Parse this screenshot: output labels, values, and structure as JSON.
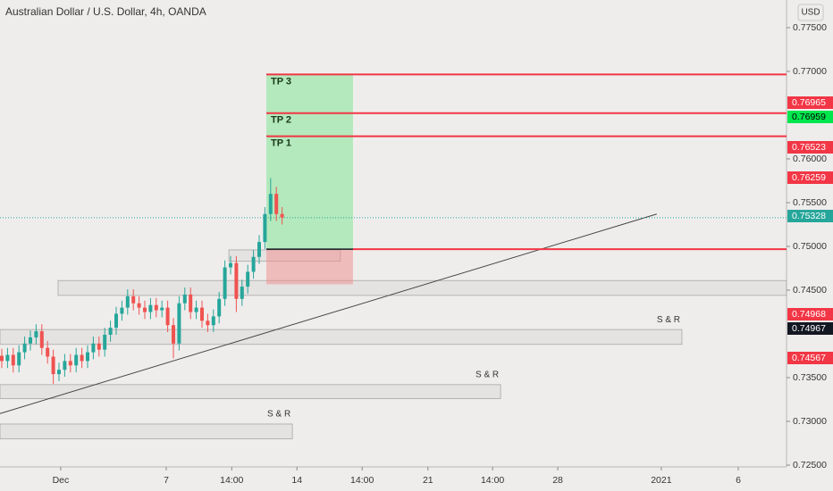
{
  "chart_data": {
    "type": "candlestick",
    "title": "Australian Dollar / U.S. Dollar, 4h, OANDA",
    "currency": "USD",
    "xlim": [
      -0.3125,
      137.19
    ],
    "ylim": [
      0.7248,
      0.77816
    ],
    "xticks": [
      {
        "value": 10.3,
        "label": "Dec"
      },
      {
        "value": 28.75,
        "label": "7"
      },
      {
        "value": 40.2,
        "label": "14:00"
      },
      {
        "value": 51.6,
        "label": "14"
      },
      {
        "value": 63.0,
        "label": "14:00"
      },
      {
        "value": 74.5,
        "label": "21"
      },
      {
        "value": 85.8,
        "label": "14:00"
      },
      {
        "value": 97.2,
        "label": "28"
      },
      {
        "value": 115.3,
        "label": "2021"
      },
      {
        "value": 128.75,
        "label": "6"
      }
    ],
    "yticks": [
      {
        "value": 0.775,
        "label": "0.77500"
      },
      {
        "value": 0.77,
        "label": "0.77000"
      },
      {
        "value": 0.76,
        "label": "0.76000"
      },
      {
        "value": 0.755,
        "label": "0.75500"
      },
      {
        "value": 0.75,
        "label": "0.75000"
      },
      {
        "value": 0.745,
        "label": "0.74500"
      },
      {
        "value": 0.735,
        "label": "0.73500"
      },
      {
        "value": 0.73,
        "label": "0.73000"
      },
      {
        "value": 0.725,
        "label": "0.72500"
      }
    ],
    "up_color": "#26a69a",
    "down_color": "#ef5350",
    "open": [
      0.7375,
      0.7369,
      0.7376,
      0.7364,
      0.7379,
      0.7389,
      0.7396,
      0.7403,
      0.7384,
      0.7374,
      0.7354,
      0.7359,
      0.7369,
      0.7364,
      0.7376,
      0.7369,
      0.7379,
      0.7389,
      0.7382,
      0.7399,
      0.7407,
      0.7423,
      0.743,
      0.7443,
      0.7435,
      0.743,
      0.7425,
      0.7433,
      0.7427,
      0.743,
      0.741,
      0.7389,
      0.7435,
      0.7445,
      0.7425,
      0.743,
      0.7415,
      0.741,
      0.742,
      0.744,
      0.7476,
      0.7481,
      0.744,
      0.7454,
      0.7471,
      0.7488,
      0.7505,
      0.7537,
      0.756,
      0.7537
    ],
    "high": [
      0.7383,
      0.7384,
      0.7384,
      0.7387,
      0.7397,
      0.7404,
      0.7411,
      0.7411,
      0.7392,
      0.7382,
      0.7367,
      0.7377,
      0.7377,
      0.7384,
      0.7384,
      0.7387,
      0.7397,
      0.7397,
      0.7407,
      0.7415,
      0.7431,
      0.7438,
      0.7451,
      0.7451,
      0.7443,
      0.7438,
      0.7441,
      0.7441,
      0.7438,
      0.7438,
      0.7418,
      0.7443,
      0.7453,
      0.7453,
      0.7438,
      0.7438,
      0.7423,
      0.7428,
      0.7448,
      0.7484,
      0.7489,
      0.7489,
      0.7462,
      0.7479,
      0.7496,
      0.7513,
      0.7545,
      0.7578,
      0.7568,
      0.7545
    ],
    "low": [
      0.7361,
      0.7361,
      0.7356,
      0.7356,
      0.7371,
      0.7381,
      0.7388,
      0.7376,
      0.7366,
      0.7343,
      0.7346,
      0.7351,
      0.7356,
      0.7356,
      0.7361,
      0.7361,
      0.7371,
      0.7374,
      0.7374,
      0.7391,
      0.7399,
      0.7415,
      0.7422,
      0.7427,
      0.7422,
      0.7417,
      0.7417,
      0.7419,
      0.7419,
      0.7402,
      0.7372,
      0.7381,
      0.7427,
      0.7417,
      0.7417,
      0.7407,
      0.7402,
      0.7402,
      0.7412,
      0.7432,
      0.7468,
      0.7425,
      0.7432,
      0.7446,
      0.7463,
      0.748,
      0.7497,
      0.7529,
      0.7529,
      0.7525
    ],
    "close": [
      0.7369,
      0.7376,
      0.7364,
      0.7379,
      0.7389,
      0.7396,
      0.7403,
      0.7384,
      0.7374,
      0.7354,
      0.7359,
      0.7369,
      0.7364,
      0.7376,
      0.7369,
      0.7379,
      0.7389,
      0.7382,
      0.7399,
      0.7407,
      0.7423,
      0.743,
      0.7443,
      0.7435,
      0.743,
      0.7425,
      0.7433,
      0.7427,
      0.743,
      0.741,
      0.7389,
      0.7435,
      0.7445,
      0.7425,
      0.743,
      0.7415,
      0.741,
      0.742,
      0.744,
      0.7476,
      0.7481,
      0.744,
      0.7454,
      0.7471,
      0.7488,
      0.7505,
      0.7537,
      0.756,
      0.7537,
      0.7533
    ],
    "zones": [
      {
        "x": [
          9.84,
          137.19
        ],
        "y": [
          0.7461,
          0.7444
        ]
      },
      {
        "x": [
          -0.3125,
          118.9
        ],
        "y": [
          0.7405,
          0.7388
        ],
        "label": "S & R"
      },
      {
        "x": [
          -0.3125,
          87.2
        ],
        "y": [
          0.7342,
          0.7326
        ],
        "label": "S & R"
      },
      {
        "x": [
          -0.3125,
          50.8
        ],
        "y": [
          0.7297,
          0.728
        ],
        "label": "S & R"
      },
      {
        "x": [
          39.7,
          59.2
        ],
        "y": [
          0.7496,
          0.7483
        ]
      }
    ],
    "trendline": {
      "x": [
        -0.3125,
        114.5
      ],
      "y": [
        0.7309,
        0.7537
      ]
    },
    "position": {
      "x": [
        46.25,
        61.4
      ],
      "entry": 0.74968,
      "target": 0.76965,
      "stop": 0.74567
    },
    "tp_levels": [
      {
        "label": "TP 3",
        "value": 0.76965
      },
      {
        "label": "TP 2",
        "value": 0.76523
      },
      {
        "label": "TP 1",
        "value": 0.76259
      }
    ],
    "current_price": 0.75328,
    "price_markers": [
      {
        "value": 0.76965,
        "color": "#f23645"
      },
      {
        "value": 0.76959,
        "color": "#00e64d"
      },
      {
        "value": 0.76523,
        "color": "#f23645"
      },
      {
        "value": 0.76259,
        "color": "#f23645"
      },
      {
        "value": 0.75328,
        "color": "#26a69a"
      },
      {
        "value": 0.74968,
        "color": "#f23645"
      },
      {
        "value": 0.74967,
        "color": "#131722"
      },
      {
        "value": 0.74567,
        "color": "#f23645"
      }
    ]
  }
}
